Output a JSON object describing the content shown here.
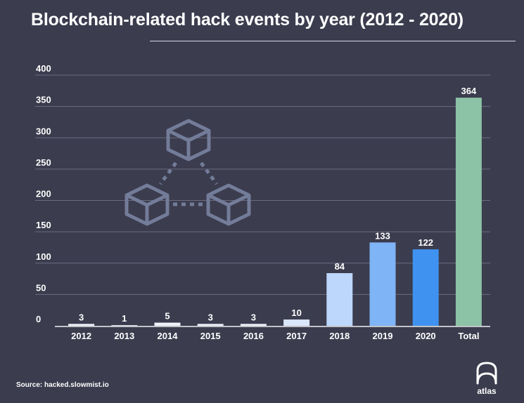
{
  "header": {
    "title": "Blockchain-related hack events by year (2012 - 2020)"
  },
  "chart_data": {
    "type": "bar",
    "title": "Blockchain-related hack events by year (2012 - 2020)",
    "xlabel": "",
    "ylabel": "",
    "ylim": [
      0,
      400
    ],
    "yticks": [
      0,
      50,
      100,
      150,
      200,
      250,
      300,
      350,
      400
    ],
    "grid": true,
    "categories": [
      "2012",
      "2013",
      "2014",
      "2015",
      "2016",
      "2017",
      "2018",
      "2019",
      "2020",
      "Total"
    ],
    "values": [
      3,
      1,
      5,
      3,
      3,
      10,
      84,
      133,
      122,
      364
    ],
    "bar_colors": [
      "#eef2fa",
      "#eef2fa",
      "#eef2fa",
      "#eef2fa",
      "#eef2fa",
      "#d9e6fb",
      "#bcd7fb",
      "#7fb4f6",
      "#3f92ef",
      "#8cc2a6"
    ]
  },
  "footer": {
    "source": "Source: hacked.slowmist.io",
    "logo_text": "atlas"
  },
  "icons": [
    "blockchain-cubes-icon",
    "atlas-logo-icon"
  ]
}
